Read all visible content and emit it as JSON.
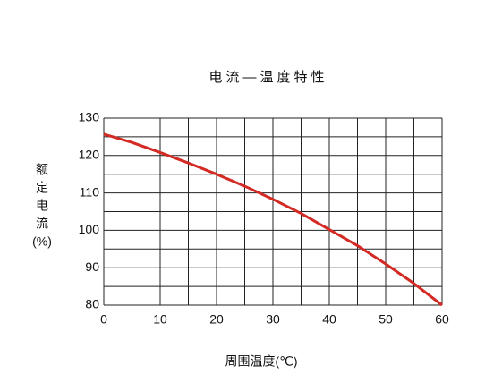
{
  "chart_data": {
    "type": "line",
    "title": "电流—温度特性",
    "xlabel": "周围温度(℃)",
    "ylabel": [
      "额",
      "定",
      "电",
      "流",
      "(%)"
    ],
    "x": [
      0,
      5,
      10,
      15,
      20,
      25,
      30,
      35,
      40,
      45,
      50,
      55,
      60
    ],
    "series": [
      {
        "color": "#d42a24",
        "values": [
          125.7,
          123.5,
          120.8,
          118,
          115,
          111.8,
          108.3,
          104.5,
          100.2,
          95.9,
          91,
          85.8,
          80
        ]
      }
    ],
    "xlim": [
      0,
      60
    ],
    "ylim": [
      80,
      130
    ],
    "xticks": [
      0,
      10,
      20,
      30,
      40,
      50,
      60
    ],
    "yticks": [
      80,
      90,
      100,
      110,
      120,
      130
    ],
    "xgrid": [
      0,
      5,
      10,
      15,
      20,
      25,
      30,
      35,
      40,
      45,
      50,
      55,
      60
    ],
    "ygrid": [
      80,
      85,
      90,
      95,
      100,
      105,
      110,
      115,
      120,
      125,
      130
    ],
    "grid": true
  }
}
